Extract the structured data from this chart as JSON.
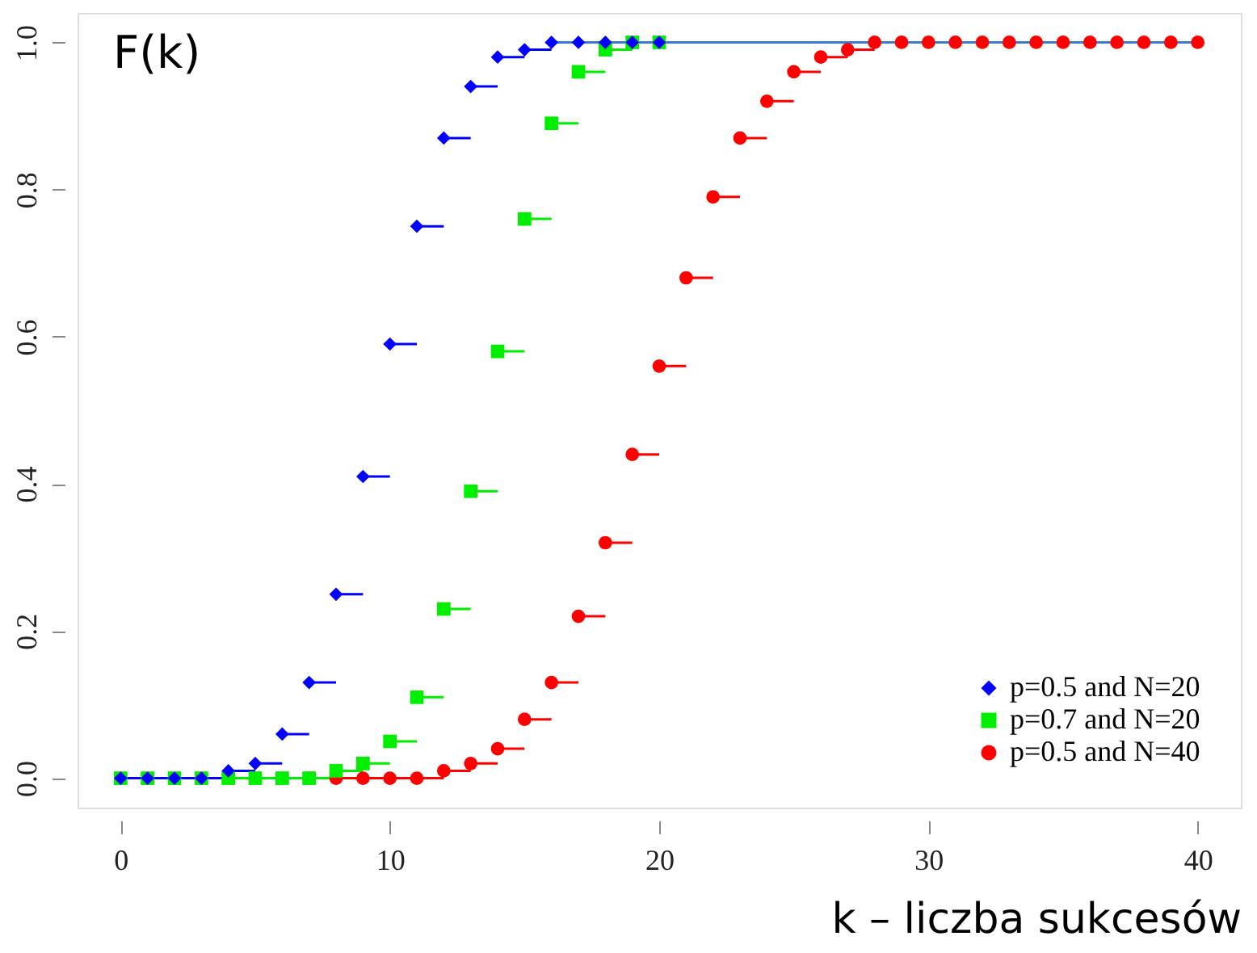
{
  "chart_data": {
    "type": "step",
    "xlabel": "k – liczba sukcesów",
    "ylabel": "F(k)",
    "xlim": [
      -1.6,
      41.6
    ],
    "ylim": [
      -0.04,
      1.04
    ],
    "xticks": [
      0,
      10,
      20,
      30,
      40
    ],
    "yticks": [
      {
        "value": 0,
        "label": "0.0"
      },
      0.2,
      0.4,
      0.6,
      0.8,
      {
        "value": 1,
        "label": "1.0"
      }
    ],
    "legend": "bottom right",
    "grid": false,
    "series": [
      {
        "name": "p=0.5 and N=20",
        "color": "#0000ff",
        "marker": "diamond",
        "x": [
          0,
          1,
          2,
          3,
          4,
          5,
          6,
          7,
          8,
          9,
          10,
          11,
          12,
          13,
          14,
          15,
          16,
          17,
          18,
          19,
          20
        ],
        "values": [
          0,
          0,
          0,
          0,
          0.01,
          0.02,
          0.06,
          0.13,
          0.25,
          0.41,
          0.59,
          0.75,
          0.87,
          0.94,
          0.98,
          0.99,
          1,
          1,
          1,
          1,
          1
        ]
      },
      {
        "name": "p=0.7 and N=20",
        "color": "#00ee00",
        "marker": "square",
        "x": [
          0,
          1,
          2,
          3,
          4,
          5,
          6,
          7,
          8,
          9,
          10,
          11,
          12,
          13,
          14,
          15,
          16,
          17,
          18,
          19,
          20
        ],
        "values": [
          0,
          0,
          0,
          0,
          0,
          0,
          0,
          0,
          0.01,
          0.02,
          0.05,
          0.11,
          0.23,
          0.39,
          0.58,
          0.76,
          0.89,
          0.96,
          0.99,
          1,
          1
        ]
      },
      {
        "type": "line",
        "color": "#3a7ad0",
        "x": [
          16,
          40
        ],
        "values": [
          1,
          1
        ]
      },
      {
        "name": "p=0.5 and N=40",
        "color": "#ff0000",
        "marker": "circle",
        "x": [
          7,
          8,
          9,
          10,
          11,
          12,
          13,
          14,
          15,
          16,
          17,
          18,
          19,
          20,
          21,
          22,
          23,
          24,
          25,
          26,
          27,
          28,
          29,
          30,
          31,
          32,
          33,
          34,
          35,
          36,
          37,
          38,
          39,
          40
        ],
        "values": [
          0,
          0,
          0,
          0,
          0,
          0.01,
          0.02,
          0.04,
          0.08,
          0.13,
          0.22,
          0.32,
          0.44,
          0.56,
          0.68,
          0.79,
          0.87,
          0.92,
          0.96,
          0.98,
          0.99,
          1,
          1,
          1,
          1,
          1,
          1,
          1,
          1,
          1,
          1,
          1,
          1,
          1
        ]
      }
    ]
  }
}
